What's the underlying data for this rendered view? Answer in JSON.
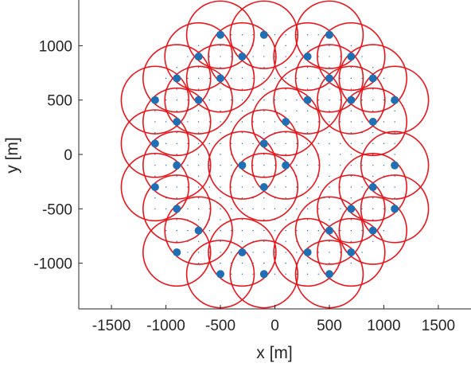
{
  "chart_data": {
    "type": "scatter",
    "title": "",
    "xlabel": "x [m]",
    "ylabel": "y [m]",
    "xlim": [
      -1800,
      1800
    ],
    "ylim": [
      -1420,
      1420
    ],
    "xticks": [
      -1500,
      -1000,
      -500,
      0,
      500,
      1000,
      1500
    ],
    "yticks": [
      -1000,
      -500,
      0,
      500,
      1000
    ],
    "xtick_labels": [
      "-1500",
      "-1000",
      "-500",
      "0",
      "500",
      "1000",
      "1500"
    ],
    "ytick_labels": [
      "-1000",
      "-500",
      "0",
      "500",
      "1000"
    ],
    "grid": false,
    "colors": {
      "points": "#1f6fb4",
      "circles": "#e8161b",
      "small_dots": "#1f6fb4",
      "axis": "#262626"
    },
    "circle_radius": 310,
    "points": [
      {
        "x": -500,
        "y": 1100
      },
      {
        "x": -100,
        "y": 1100
      },
      {
        "x": 500,
        "y": 1100
      },
      {
        "x": -700,
        "y": 900
      },
      {
        "x": -300,
        "y": 900
      },
      {
        "x": 300,
        "y": 900
      },
      {
        "x": 700,
        "y": 900
      },
      {
        "x": -900,
        "y": 700
      },
      {
        "x": -500,
        "y": 700
      },
      {
        "x": 500,
        "y": 700
      },
      {
        "x": 900,
        "y": 700
      },
      {
        "x": -1100,
        "y": 500
      },
      {
        "x": -700,
        "y": 500
      },
      {
        "x": 300,
        "y": 500
      },
      {
        "x": 700,
        "y": 500
      },
      {
        "x": 1100,
        "y": 500
      },
      {
        "x": -900,
        "y": 300
      },
      {
        "x": 100,
        "y": 300
      },
      {
        "x": 900,
        "y": 300
      },
      {
        "x": -1100,
        "y": 100
      },
      {
        "x": -100,
        "y": 100
      },
      {
        "x": -900,
        "y": -100
      },
      {
        "x": -300,
        "y": -100
      },
      {
        "x": 100,
        "y": -100
      },
      {
        "x": 1100,
        "y": -100
      },
      {
        "x": -1100,
        "y": -300
      },
      {
        "x": -100,
        "y": -300
      },
      {
        "x": 900,
        "y": -300
      },
      {
        "x": -900,
        "y": -500
      },
      {
        "x": 700,
        "y": -500
      },
      {
        "x": 1100,
        "y": -500
      },
      {
        "x": -700,
        "y": -700
      },
      {
        "x": 500,
        "y": -700
      },
      {
        "x": 900,
        "y": -700
      },
      {
        "x": -900,
        "y": -900
      },
      {
        "x": -300,
        "y": -900
      },
      {
        "x": 300,
        "y": -900
      },
      {
        "x": 700,
        "y": -900
      },
      {
        "x": -500,
        "y": -1100
      },
      {
        "x": -100,
        "y": -1100
      },
      {
        "x": 500,
        "y": -1100
      }
    ],
    "grid_points": {
      "x_start": -1100,
      "x_end": 1100,
      "y_start": -1100,
      "y_end": 1100,
      "step": 100,
      "max_radius": 1250
    }
  }
}
